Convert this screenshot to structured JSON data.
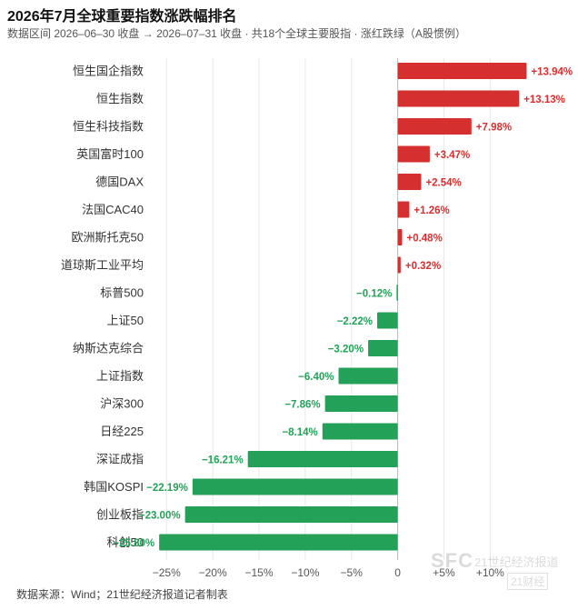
{
  "chart_data": {
    "type": "bar",
    "orientation": "horizontal",
    "title": "2026年7月全球重要指数涨跌幅排名",
    "subtitle": "数据区间 2026–06–30 收盘 → 2026–07–31 收盘 · 共18个全球主要股指 · 涨红跌绿（A股惯例）",
    "categories": [
      "恒生国企指数",
      "恒生指数",
      "恒生科技指数",
      "英国富时100",
      "德国DAX",
      "法国CAC40",
      "欧洲斯托克50",
      "道琼斯工业平均",
      "标普500",
      "上证50",
      "纳斯达克综合",
      "上证指数",
      "沪深300",
      "日经225",
      "深证成指",
      "韩国KOSPI",
      "创业板指",
      "科创50"
    ],
    "values": [
      13.94,
      13.13,
      7.98,
      3.47,
      2.54,
      1.26,
      0.48,
      0.32,
      -0.12,
      -2.22,
      -3.2,
      -6.4,
      -7.86,
      -8.14,
      -16.21,
      -22.19,
      -23.0,
      -25.8
    ],
    "value_labels": [
      "+13.94%",
      "+13.13%",
      "+7.98%",
      "+3.47%",
      "+2.54%",
      "+1.26%",
      "+0.48%",
      "+0.32%",
      "−0.12%",
      "−2.22%",
      "−3.20%",
      "−6.40%",
      "−7.86%",
      "−8.14%",
      "−16.21%",
      "−22.19%",
      "−23.00%",
      "−25.80%"
    ],
    "xlim": [
      -26.5,
      19.5
    ],
    "xticks": [
      -25,
      -20,
      -15,
      -10,
      -5,
      0,
      5,
      10
    ],
    "xtick_labels": [
      "−25%",
      "−20%",
      "−15%",
      "−10%",
      "−5%",
      "0",
      "+5%",
      "+10%"
    ],
    "grid": true,
    "colors": {
      "up": "#d62f2f",
      "down": "#24a158",
      "grid": "#e8e8e8",
      "zero": "#b8b8b8"
    }
  },
  "source": "数据来源：Wind；21世纪经济报道记者制表",
  "watermark": {
    "brand": "SFC",
    "name": "21世纪经济报道",
    "tag": "21财经"
  }
}
